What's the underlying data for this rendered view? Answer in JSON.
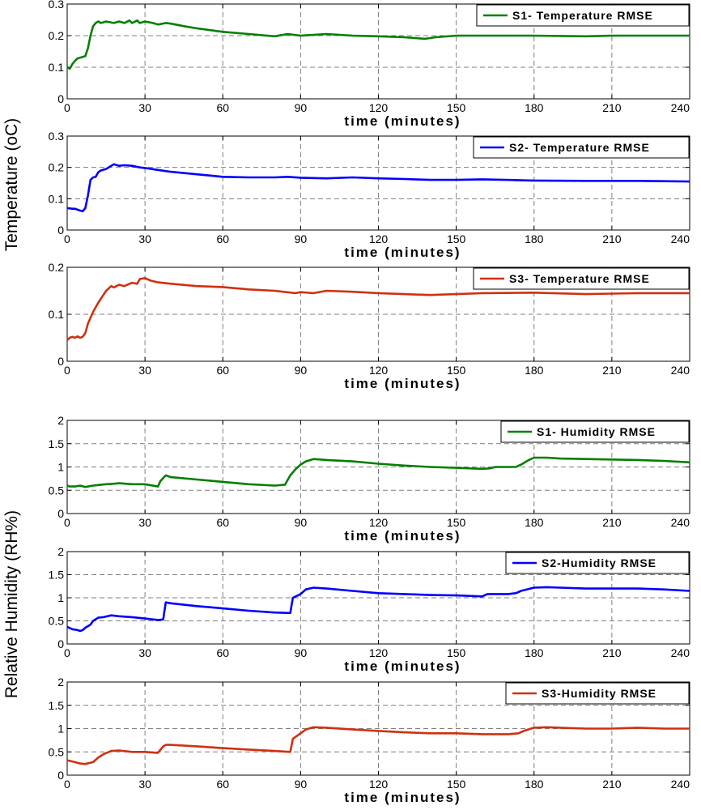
{
  "figure": {
    "group_labels": {
      "temperature": "Temperature (oC)",
      "humidity": "Relative Humidity (RH%)"
    }
  },
  "chart_data": [
    {
      "type": "line",
      "xlabel": "time (minutes)",
      "xlim": [
        0,
        240
      ],
      "xticks": [
        0,
        30,
        60,
        90,
        120,
        150,
        180,
        210,
        240
      ],
      "ylim": [
        0,
        0.3
      ],
      "yticks": [
        0,
        0.1,
        0.2,
        0.3
      ],
      "ytick_labels": [
        "0",
        "0.1",
        "0.2",
        "0.3"
      ],
      "grid": true,
      "legend_position": "top-right",
      "series": [
        {
          "name": "S1- Temperature RMSE",
          "color": "#008000",
          "x": [
            0,
            1,
            2,
            3,
            4,
            5,
            7,
            8,
            9,
            10,
            11,
            12,
            13,
            15,
            18,
            20,
            22,
            24,
            25,
            27,
            28,
            30,
            33,
            35,
            38,
            40,
            45,
            50,
            60,
            70,
            80,
            85,
            90,
            100,
            110,
            120,
            130,
            138,
            142,
            150,
            160,
            180,
            200,
            210,
            220,
            240
          ],
          "y": [
            0.1,
            0.095,
            0.11,
            0.12,
            0.128,
            0.13,
            0.135,
            0.16,
            0.2,
            0.23,
            0.24,
            0.245,
            0.24,
            0.245,
            0.24,
            0.245,
            0.24,
            0.248,
            0.24,
            0.248,
            0.24,
            0.245,
            0.24,
            0.235,
            0.24,
            0.238,
            0.23,
            0.223,
            0.212,
            0.205,
            0.198,
            0.205,
            0.2,
            0.205,
            0.2,
            0.198,
            0.195,
            0.19,
            0.195,
            0.2,
            0.2,
            0.2,
            0.198,
            0.2,
            0.2,
            0.2
          ]
        }
      ]
    },
    {
      "type": "line",
      "xlabel": "time (minutes)",
      "xlim": [
        0,
        240
      ],
      "xticks": [
        0,
        30,
        60,
        90,
        120,
        150,
        180,
        210,
        240
      ],
      "ylim": [
        0,
        0.3
      ],
      "yticks": [
        0,
        0.1,
        0.2,
        0.3
      ],
      "ytick_labels": [
        "0",
        "0.1",
        "0.2",
        "0.3"
      ],
      "grid": true,
      "legend_position": "top-right",
      "series": [
        {
          "name": "S2- Temperature RMSE",
          "color": "#0000ff",
          "x": [
            0,
            2,
            3,
            5,
            6,
            7,
            8,
            9,
            10,
            11,
            12,
            13,
            15,
            17,
            18,
            20,
            22,
            25,
            28,
            30,
            35,
            40,
            50,
            60,
            70,
            80,
            85,
            90,
            100,
            110,
            120,
            130,
            140,
            150,
            160,
            180,
            200,
            220,
            240
          ],
          "y": [
            0.07,
            0.068,
            0.068,
            0.062,
            0.06,
            0.07,
            0.11,
            0.16,
            0.168,
            0.17,
            0.185,
            0.19,
            0.195,
            0.205,
            0.21,
            0.205,
            0.207,
            0.205,
            0.2,
            0.198,
            0.192,
            0.186,
            0.178,
            0.17,
            0.168,
            0.168,
            0.17,
            0.167,
            0.165,
            0.168,
            0.165,
            0.163,
            0.16,
            0.16,
            0.162,
            0.158,
            0.157,
            0.157,
            0.155
          ]
        }
      ]
    },
    {
      "type": "line",
      "xlabel": "time (minutes)",
      "xlim": [
        0,
        240
      ],
      "xticks": [
        0,
        30,
        60,
        90,
        120,
        150,
        180,
        210,
        240
      ],
      "ylim": [
        0,
        0.2
      ],
      "yticks": [
        0,
        0.1,
        0.2
      ],
      "ytick_labels": [
        "0",
        "0.1",
        "0.2"
      ],
      "grid": true,
      "legend_position": "top-right",
      "series": [
        {
          "name": "S3- Temperature RMSE",
          "color": "#d03010",
          "x": [
            0,
            1,
            2,
            3,
            4,
            5,
            6,
            7,
            8,
            10,
            12,
            15,
            17,
            18,
            20,
            22,
            25,
            27,
            28,
            30,
            32,
            35,
            40,
            50,
            60,
            70,
            80,
            88,
            90,
            95,
            100,
            110,
            120,
            130,
            140,
            150,
            160,
            180,
            200,
            220,
            240
          ],
          "y": [
            0.045,
            0.05,
            0.052,
            0.05,
            0.053,
            0.05,
            0.052,
            0.06,
            0.08,
            0.105,
            0.125,
            0.15,
            0.16,
            0.157,
            0.163,
            0.16,
            0.167,
            0.165,
            0.175,
            0.177,
            0.172,
            0.168,
            0.165,
            0.16,
            0.158,
            0.153,
            0.15,
            0.145,
            0.147,
            0.145,
            0.15,
            0.148,
            0.145,
            0.143,
            0.141,
            0.143,
            0.145,
            0.146,
            0.143,
            0.145,
            0.145
          ]
        }
      ]
    },
    {
      "type": "line",
      "xlabel": "time (minutes)",
      "xlim": [
        0,
        240
      ],
      "xticks": [
        0,
        30,
        60,
        90,
        120,
        150,
        180,
        210,
        240
      ],
      "ylim": [
        0,
        2
      ],
      "yticks": [
        0,
        0.5,
        1,
        1.5,
        2
      ],
      "ytick_labels": [
        "0",
        "0.5",
        "1",
        "1.5",
        "2"
      ],
      "grid": true,
      "legend_position": "top-right",
      "series": [
        {
          "name": "S1- Humidity RMSE",
          "color": "#008000",
          "x": [
            0,
            1,
            3,
            5,
            7,
            10,
            13,
            15,
            18,
            20,
            25,
            30,
            35,
            36,
            38,
            40,
            50,
            60,
            70,
            80,
            84,
            86,
            88,
            90,
            92,
            95,
            100,
            110,
            120,
            130,
            140,
            150,
            160,
            163,
            165,
            170,
            173,
            175,
            178,
            180,
            185,
            190,
            200,
            210,
            220,
            230,
            240
          ],
          "y": [
            0.6,
            0.58,
            0.58,
            0.6,
            0.57,
            0.6,
            0.62,
            0.63,
            0.64,
            0.65,
            0.63,
            0.63,
            0.58,
            0.7,
            0.82,
            0.78,
            0.73,
            0.68,
            0.63,
            0.6,
            0.62,
            0.82,
            0.95,
            1.05,
            1.12,
            1.17,
            1.15,
            1.12,
            1.07,
            1.03,
            1.0,
            0.98,
            0.96,
            0.97,
            1.0,
            1.0,
            1.0,
            1.05,
            1.15,
            1.2,
            1.2,
            1.18,
            1.17,
            1.16,
            1.15,
            1.13,
            1.1
          ]
        }
      ]
    },
    {
      "type": "line",
      "xlabel": "time (minutes)",
      "xlim": [
        0,
        240
      ],
      "xticks": [
        0,
        30,
        60,
        90,
        120,
        150,
        180,
        210,
        240
      ],
      "ylim": [
        0,
        2
      ],
      "yticks": [
        0,
        0.5,
        1,
        1.5,
        2
      ],
      "ytick_labels": [
        "0",
        "0.5",
        "1",
        "1.5",
        "2"
      ],
      "grid": true,
      "legend_position": "top-right",
      "series": [
        {
          "name": "S2-Humidity RMSE",
          "color": "#0000ff",
          "x": [
            0,
            2,
            4,
            5,
            6,
            7,
            9,
            10,
            12,
            14,
            17,
            20,
            25,
            30,
            35,
            37,
            38,
            40,
            50,
            60,
            70,
            80,
            86,
            87,
            90,
            92,
            95,
            100,
            110,
            120,
            130,
            140,
            150,
            160,
            162,
            165,
            170,
            173,
            175,
            180,
            185,
            190,
            200,
            210,
            220,
            230,
            240
          ],
          "y": [
            0.37,
            0.32,
            0.3,
            0.28,
            0.3,
            0.35,
            0.42,
            0.5,
            0.57,
            0.58,
            0.62,
            0.6,
            0.58,
            0.55,
            0.52,
            0.53,
            0.9,
            0.88,
            0.82,
            0.77,
            0.72,
            0.68,
            0.67,
            1.0,
            1.08,
            1.18,
            1.22,
            1.2,
            1.15,
            1.1,
            1.08,
            1.06,
            1.05,
            1.03,
            1.08,
            1.08,
            1.08,
            1.1,
            1.15,
            1.22,
            1.23,
            1.22,
            1.2,
            1.2,
            1.2,
            1.18,
            1.15
          ]
        }
      ]
    },
    {
      "type": "line",
      "xlabel": "time (minutes)",
      "xlim": [
        0,
        240
      ],
      "xticks": [
        0,
        30,
        60,
        90,
        120,
        150,
        180,
        210,
        240
      ],
      "ylim": [
        0,
        2
      ],
      "yticks": [
        0,
        0.5,
        1,
        1.5,
        2
      ],
      "ytick_labels": [
        "0",
        "0.5",
        "1",
        "1.5",
        "2"
      ],
      "grid": true,
      "legend_position": "top-right",
      "series": [
        {
          "name": "S3-Humidity RMSE",
          "color": "#d03010",
          "x": [
            0,
            3,
            5,
            7,
            10,
            12,
            14,
            17,
            20,
            25,
            30,
            35,
            36,
            37,
            38,
            40,
            50,
            60,
            70,
            80,
            86,
            87,
            90,
            92,
            95,
            100,
            110,
            120,
            130,
            140,
            150,
            160,
            170,
            174,
            176,
            180,
            185,
            190,
            200,
            210,
            220,
            230,
            240
          ],
          "y": [
            0.32,
            0.28,
            0.25,
            0.24,
            0.28,
            0.38,
            0.45,
            0.52,
            0.53,
            0.5,
            0.5,
            0.48,
            0.55,
            0.62,
            0.65,
            0.65,
            0.62,
            0.58,
            0.55,
            0.52,
            0.5,
            0.78,
            0.9,
            0.98,
            1.03,
            1.02,
            0.98,
            0.95,
            0.92,
            0.9,
            0.9,
            0.88,
            0.88,
            0.9,
            0.95,
            1.02,
            1.03,
            1.02,
            1.0,
            1.0,
            1.02,
            1.0,
            1.0
          ]
        }
      ]
    }
  ]
}
